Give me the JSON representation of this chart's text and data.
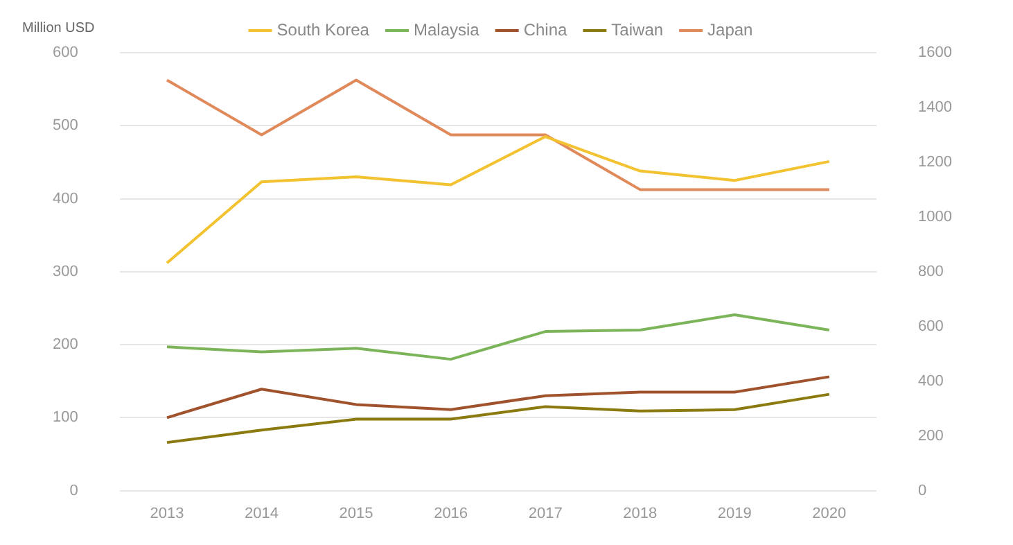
{
  "chart_data": {
    "type": "line",
    "ylabel": "Million USD",
    "categories": [
      "2013",
      "2014",
      "2015",
      "2016",
      "2017",
      "2018",
      "2019",
      "2020"
    ],
    "series": [
      {
        "name": "South Korea",
        "color": "#f2c230",
        "values": [
          312,
          423,
          430,
          419,
          485,
          438,
          425,
          451
        ]
      },
      {
        "name": "Malaysia",
        "color": "#7cb45a",
        "values": [
          197,
          190,
          195,
          180,
          218,
          220,
          241,
          220
        ]
      },
      {
        "name": "China",
        "color": "#a0522d",
        "values": [
          100,
          139,
          118,
          111,
          130,
          135,
          135,
          156
        ]
      },
      {
        "name": "Taiwan",
        "color": "#8a7a10",
        "values": [
          66,
          83,
          98,
          98,
          115,
          109,
          111,
          132
        ]
      },
      {
        "name": "Japan",
        "color": "#e0895a",
        "axis": "y2",
        "values": [
          1500,
          1300,
          1500,
          1300,
          1300,
          1100,
          1100,
          1100
        ]
      }
    ],
    "ylim": [
      0,
      600
    ],
    "yticks": [
      0,
      100,
      200,
      300,
      400,
      500,
      600
    ],
    "y2lim": [
      0,
      1600
    ],
    "y2ticks": [
      0,
      200,
      400,
      600,
      800,
      1000,
      1200,
      1400,
      1600
    ],
    "grid": "y",
    "legend": "top",
    "marker": "none",
    "line_style": "solid"
  }
}
